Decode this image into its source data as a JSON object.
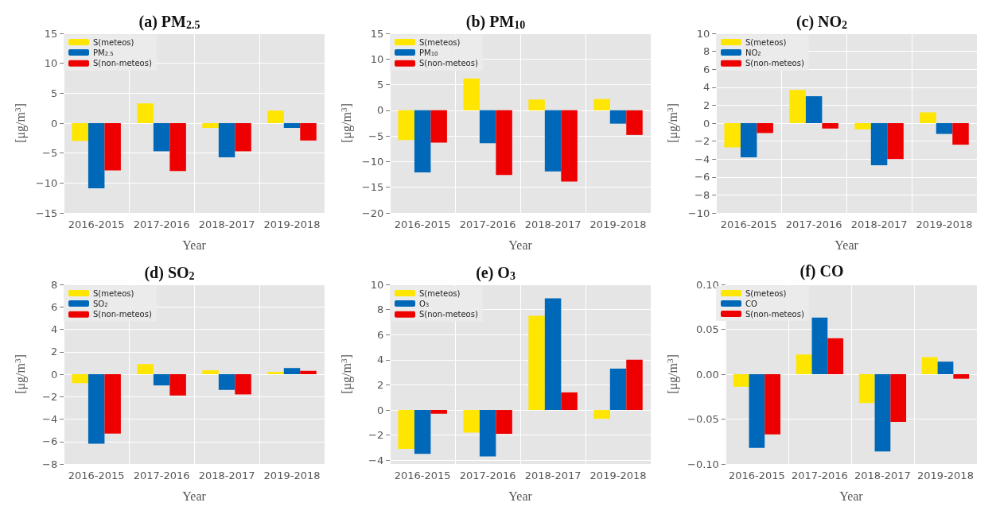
{
  "chart_data": [
    {
      "type": "bar",
      "title": "(a) PM$_{2.5}$",
      "xlabel": "Year",
      "ylabel": "[μg/m$^{3}$]",
      "categories": [
        "2016-2015",
        "2017-2016",
        "2018-2017",
        "2019-2018"
      ],
      "ylim": [
        -15,
        15
      ],
      "yticks": [
        -15,
        -10,
        -5,
        0,
        5,
        10,
        15
      ],
      "grid": true,
      "legend": "top left",
      "series": [
        {
          "name": "S(meteos)",
          "color": "#ffe600",
          "values": [
            -3,
            3.3,
            -0.8,
            2.1
          ]
        },
        {
          "name": "PM$_{2.5}$",
          "color": "#0068b8",
          "values": [
            -10.9,
            -4.7,
            -5.7,
            -0.8
          ]
        },
        {
          "name": "S(non-meteos)",
          "color": "#ee0000",
          "values": [
            -7.9,
            -8,
            -4.7,
            -2.9
          ]
        }
      ]
    },
    {
      "type": "bar",
      "title": "(b) PM$_{10}$",
      "xlabel": "Year",
      "ylabel": "[μg/m$^{3}$]",
      "categories": [
        "2016-2015",
        "2017-2016",
        "2018-2017",
        "2019-2018"
      ],
      "ylim": [
        -20,
        15
      ],
      "yticks": [
        -20,
        -15,
        -10,
        -5,
        0,
        5,
        10,
        15
      ],
      "grid": true,
      "legend": "top left",
      "series": [
        {
          "name": "S(meteos)",
          "color": "#ffe600",
          "values": [
            -5.8,
            6.2,
            2.1,
            2.2
          ]
        },
        {
          "name": "PM$_{10}$",
          "color": "#0068b8",
          "values": [
            -12.1,
            -6.4,
            -11.9,
            -2.6
          ]
        },
        {
          "name": "S(non-meteos)",
          "color": "#ee0000",
          "values": [
            -6.3,
            -12.6,
            -13.9,
            -4.8
          ]
        }
      ]
    },
    {
      "type": "bar",
      "title": "(c) NO$_{2}$",
      "xlabel": "Year",
      "ylabel": "[μg/m$^{3}$]",
      "categories": [
        "2016-2015",
        "2017-2016",
        "2018-2017",
        "2019-2018"
      ],
      "ylim": [
        -10,
        10
      ],
      "yticks": [
        -10,
        -8,
        -6,
        -4,
        -2,
        0,
        2,
        4,
        6,
        8,
        10
      ],
      "grid": true,
      "legend": "top left",
      "series": [
        {
          "name": "S(meteos)",
          "color": "#ffe600",
          "values": [
            -2.7,
            3.7,
            -0.7,
            1.2
          ]
        },
        {
          "name": "NO$_{2}$",
          "color": "#0068b8",
          "values": [
            -3.8,
            3.0,
            -4.7,
            -1.2
          ]
        },
        {
          "name": "S(non-meteos)",
          "color": "#ee0000",
          "values": [
            -1.1,
            -0.6,
            -4.0,
            -2.4
          ]
        }
      ]
    },
    {
      "type": "bar",
      "title": "(d) SO$_{2}$",
      "xlabel": "Year",
      "ylabel": "[μg/m$^{3}$]",
      "categories": [
        "2016-2015",
        "2017-2016",
        "2018-2017",
        "2019-2018"
      ],
      "ylim": [
        -8,
        8
      ],
      "yticks": [
        -8,
        -6,
        -4,
        -2,
        0,
        2,
        4,
        6,
        8
      ],
      "grid": true,
      "legend": "top left",
      "series": [
        {
          "name": "S(meteos)",
          "color": "#ffe600",
          "values": [
            -0.8,
            0.9,
            0.35,
            0.2
          ]
        },
        {
          "name": "SO$_{2}$",
          "color": "#0068b8",
          "values": [
            -6.2,
            -1.0,
            -1.4,
            0.55
          ]
        },
        {
          "name": "S(non-meteos)",
          "color": "#ee0000",
          "values": [
            -5.3,
            -1.9,
            -1.8,
            0.3
          ]
        }
      ]
    },
    {
      "type": "bar",
      "title": "(e) O$_{3}$",
      "xlabel": "Year",
      "ylabel": "[μg/m$^{3}$]",
      "categories": [
        "2016-2015",
        "2017-2016",
        "2018-2017",
        "2019-2018"
      ],
      "ylim": [
        -4.3,
        10
      ],
      "yticks": [
        -4,
        -2,
        0,
        2,
        4,
        6,
        8,
        10
      ],
      "grid": true,
      "legend": "top left",
      "series": [
        {
          "name": "S(meteos)",
          "color": "#ffe600",
          "values": [
            -3.1,
            -1.8,
            7.5,
            -0.7
          ]
        },
        {
          "name": "O$_{3}$",
          "color": "#0068b8",
          "values": [
            -3.5,
            -3.7,
            8.9,
            3.3
          ]
        },
        {
          "name": "S(non-meteos)",
          "color": "#ee0000",
          "values": [
            -0.3,
            -1.9,
            1.4,
            4.0
          ]
        }
      ]
    },
    {
      "type": "bar",
      "title": "(f) CO",
      "xlabel": "Year",
      "ylabel": "[μg/m$^{3}$]",
      "categories": [
        "2016-2015",
        "2017-2016",
        "2018-2017",
        "2019-2018"
      ],
      "ylim": [
        -0.1,
        0.1
      ],
      "yticks": [
        {
          "value": -0.1,
          "label": "−0.10"
        },
        {
          "value": -0.05,
          "label": "−0.05"
        },
        {
          "value": 0,
          "label": "0.00"
        },
        {
          "value": 0.05,
          "label": "0.05"
        },
        {
          "value": 0.1,
          "label": "0.10"
        }
      ],
      "grid": true,
      "legend": "top left",
      "series": [
        {
          "name": "S(meteos)",
          "color": "#ffe600",
          "values": [
            -0.014,
            0.022,
            -0.032,
            0.019
          ]
        },
        {
          "name": "CO",
          "color": "#0068b8",
          "values": [
            -0.082,
            0.063,
            -0.086,
            0.014
          ]
        },
        {
          "name": "S(non-meteos)",
          "color": "#ee0000",
          "values": [
            -0.067,
            0.04,
            -0.053,
            -0.005
          ]
        }
      ]
    }
  ]
}
